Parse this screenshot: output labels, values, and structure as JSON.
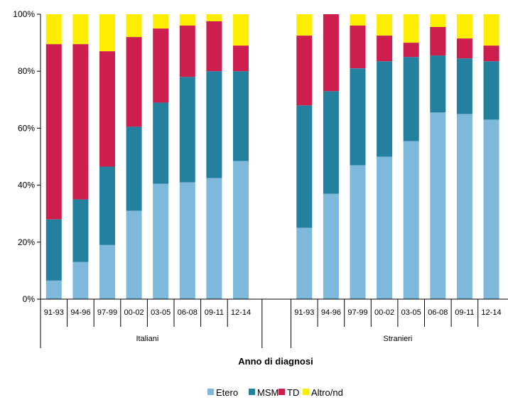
{
  "chart_data": {
    "type": "bar",
    "stacked": true,
    "percent": true,
    "xlabel": "Anno di diagnosi",
    "ylabel": "",
    "ylim": [
      0,
      100
    ],
    "yticks": [
      "0%",
      "20%",
      "40%",
      "60%",
      "80%",
      "100%"
    ],
    "legend_position": "bottom",
    "grid": false,
    "groups": [
      {
        "name": "Italiani",
        "categories": [
          "91-93",
          "94-96",
          "97-99",
          "00-02",
          "03-05",
          "06-08",
          "09-11",
          "12-14"
        ],
        "series": [
          {
            "name": "Etero",
            "color": "#7EB8DA",
            "values": [
              6.5,
              13,
              19,
              31,
              40.5,
              41,
              42.5,
              48.5
            ]
          },
          {
            "name": "MSM",
            "color": "#23809F",
            "values": [
              21.5,
              22,
              27.5,
              29.5,
              28.5,
              37,
              37.5,
              31.5
            ]
          },
          {
            "name": "TD",
            "color": "#CD1E4E",
            "values": [
              61.5,
              54.5,
              40.5,
              31.5,
              26,
              18,
              17.5,
              9
            ]
          },
          {
            "name": "Altro/nd",
            "color": "#FDEE00",
            "values": [
              10.5,
              10.5,
              13,
              8,
              5,
              4,
              2.5,
              11
            ]
          }
        ]
      },
      {
        "name": "Stranieri",
        "categories": [
          "91-93",
          "94-96",
          "97-99",
          "00-02",
          "03-05",
          "06-08",
          "09-11",
          "12-14"
        ],
        "series": [
          {
            "name": "Etero",
            "color": "#7EB8DA",
            "values": [
              25,
              37,
              47,
              50,
              55.5,
              65.5,
              65,
              63
            ]
          },
          {
            "name": "MSM",
            "color": "#23809F",
            "values": [
              43,
              36,
              34,
              33.5,
              29.5,
              20,
              19.5,
              20.5
            ]
          },
          {
            "name": "TD",
            "color": "#CD1E4E",
            "values": [
              24.5,
              27,
              15,
              9,
              5,
              10,
              7,
              5.5
            ]
          },
          {
            "name": "Altro/nd",
            "color": "#FDEE00",
            "values": [
              7.5,
              0,
              4,
              7.5,
              10,
              4.5,
              8.5,
              11
            ]
          }
        ]
      }
    ]
  }
}
